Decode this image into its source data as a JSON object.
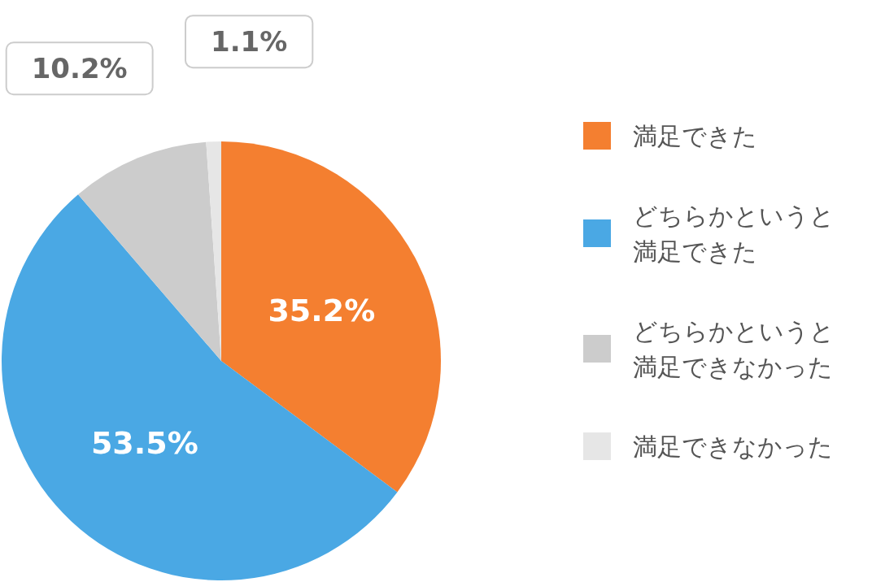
{
  "chart_data": {
    "type": "pie",
    "categories": [
      "満足できた",
      "どちらかというと満足できた",
      "どちらかというと満足できなかった",
      "満足できなかった"
    ],
    "values": [
      35.2,
      53.5,
      10.2,
      1.1
    ],
    "value_labels": [
      "35.2%",
      "53.5%",
      "10.2%",
      "1.1%"
    ],
    "colors": [
      "#f47f30",
      "#4aa8e4",
      "#cccccc",
      "#e6e6e6"
    ],
    "legend": "right"
  }
}
